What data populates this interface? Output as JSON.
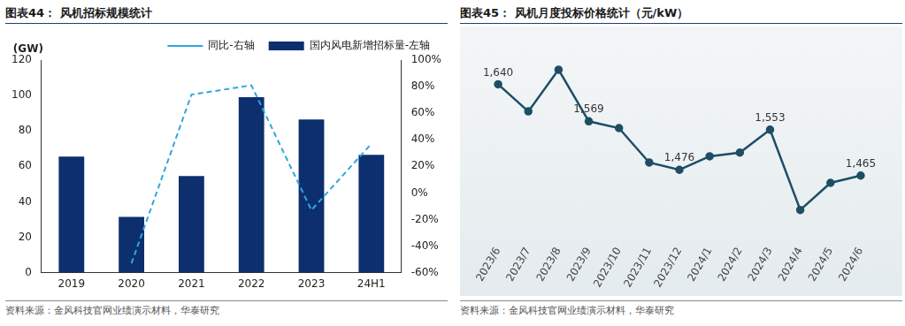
{
  "chart_data": [
    {
      "type": "bar",
      "title": "图表44： 风机招标规模统计",
      "source": "资料来源：金风科技官网业绩演示材料，华泰研究",
      "ylabel": "(GW)",
      "categories": [
        "2019",
        "2020",
        "2021",
        "2022",
        "2023",
        "24H1"
      ],
      "series": [
        {
          "name": "国内风电新增招标量-左轴",
          "type": "bar",
          "color": "#0d2f6e",
          "values": [
            65.5,
            31.5,
            54.5,
            99,
            86.5,
            66.5
          ]
        },
        {
          "name": "同比-右轴",
          "type": "line",
          "axis": "y2",
          "color": "#2ea7e0",
          "line_style": "dashed",
          "marker": "none",
          "values": [
            null,
            -53,
            74,
            81,
            -13,
            37
          ]
        }
      ],
      "ylim": [
        0,
        120
      ],
      "yticks": [
        0,
        20,
        40,
        60,
        80,
        100,
        120
      ],
      "y2lim": [
        -60,
        100
      ],
      "y2ticks": [
        {
          "value": -60,
          "label": "-60%"
        },
        {
          "value": -40,
          "label": "-40%"
        },
        {
          "value": -20,
          "label": "-20%"
        },
        {
          "value": 0,
          "label": "0%"
        },
        {
          "value": 20,
          "label": "20%"
        },
        {
          "value": 40,
          "label": "40%"
        },
        {
          "value": 60,
          "label": "60%"
        },
        {
          "value": 80,
          "label": "80%"
        },
        {
          "value": 100,
          "label": "100%"
        }
      ],
      "legend": "top",
      "grid": false
    },
    {
      "type": "line",
      "title": "图表45： 风机月度投标价格统计（元/kW）",
      "source": "资料来源：金风科技官网业绩演示材料，华泰研究",
      "categories": [
        "2023/6",
        "2023/7",
        "2023/8",
        "2023/9",
        "2023/10",
        "2023/11",
        "2023/12",
        "2024/1",
        "2024/2",
        "2024/3",
        "2024/4",
        "2024/5",
        "2024/6"
      ],
      "values": [
        1640,
        1588,
        1668,
        1569,
        1556,
        1490,
        1476,
        1502,
        1509,
        1553,
        1399,
        1451,
        1465
      ],
      "value_labels": [
        "1,640",
        null,
        null,
        "1,569",
        null,
        null,
        "1,476",
        null,
        null,
        "1,553",
        null,
        null,
        "1,465"
      ],
      "color": "#1d4e66",
      "marker": "circle",
      "ylim": [
        1350,
        1700
      ],
      "data_labels": true,
      "tick_labels": "x",
      "grid": false
    }
  ]
}
